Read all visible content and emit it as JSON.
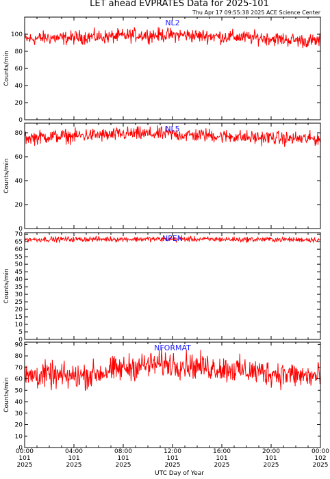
{
  "title": "LET ahead EVPRATES Data for 2025-101",
  "timestamp": "Thu Apr 17 09:55:38 2025 ACE Science Center",
  "colors": {
    "series": "#ff0000",
    "panel_label": "#1a1aff",
    "axes": "#000000"
  },
  "xaxis": {
    "label": "UTC Day of Year",
    "ticks": [
      {
        "time": "00:00",
        "doy": "101",
        "year": "2025",
        "hours": 0
      },
      {
        "time": "04:00",
        "doy": "101",
        "year": "2025",
        "hours": 4
      },
      {
        "time": "08:00",
        "doy": "101",
        "year": "2025",
        "hours": 8
      },
      {
        "time": "12:00",
        "doy": "101",
        "year": "2025",
        "hours": 12
      },
      {
        "time": "16:00",
        "doy": "101",
        "year": "2025",
        "hours": 16
      },
      {
        "time": "20:00",
        "doy": "101",
        "year": "2025",
        "hours": 20
      },
      {
        "time": "00:00",
        "doy": "102",
        "year": "2025",
        "hours": 24
      }
    ]
  },
  "chart_data": [
    {
      "type": "line",
      "series": [
        {
          "name": "NL2"
        }
      ],
      "label": "NL2",
      "ylabel": "Counts/min",
      "ylim": [
        0,
        120
      ],
      "yticks": [
        0,
        20,
        40,
        60,
        80,
        100
      ],
      "xlim_hours": [
        0,
        24
      ],
      "x_hours": [
        0,
        1,
        2,
        3,
        4,
        5,
        6,
        7,
        8,
        9,
        10,
        11,
        12,
        13,
        14,
        15,
        16,
        17,
        18,
        19,
        20,
        21,
        22,
        23,
        24
      ],
      "values": [
        94,
        95,
        96,
        95,
        96,
        97,
        97,
        97,
        98,
        99,
        99,
        99,
        99,
        99,
        98,
        98,
        97,
        97,
        96,
        96,
        95,
        94,
        93,
        92,
        92
      ],
      "noise": 7
    },
    {
      "type": "line",
      "series": [
        {
          "name": "NL5"
        }
      ],
      "label": "NL5",
      "ylabel": "Counts/min",
      "ylim": [
        0,
        88
      ],
      "yticks": [
        0,
        20,
        40,
        60,
        80
      ],
      "xlim_hours": [
        0,
        24
      ],
      "x_hours": [
        0,
        1,
        2,
        3,
        4,
        5,
        6,
        7,
        8,
        9,
        10,
        11,
        12,
        13,
        14,
        15,
        16,
        17,
        18,
        19,
        20,
        21,
        22,
        23,
        24
      ],
      "values": [
        76,
        76,
        77,
        77,
        77,
        78,
        78,
        78,
        79,
        79,
        79,
        79,
        79,
        78,
        78,
        78,
        77,
        77,
        76,
        76,
        76,
        75,
        75,
        75,
        75
      ],
      "noise": 5
    },
    {
      "type": "line",
      "series": [
        {
          "name": "NPEN"
        }
      ],
      "label": "NPEN",
      "ylabel": "Counts/min",
      "ylim": [
        0,
        71
      ],
      "yticks": [
        0,
        5,
        10,
        15,
        20,
        25,
        30,
        35,
        40,
        45,
        50,
        55,
        60,
        65,
        70
      ],
      "xlim_hours": [
        0,
        24
      ],
      "x_hours": [
        0,
        1,
        2,
        3,
        4,
        5,
        6,
        7,
        8,
        9,
        10,
        11,
        12,
        13,
        14,
        15,
        16,
        17,
        18,
        19,
        20,
        21,
        22,
        23,
        24
      ],
      "values": [
        66.5,
        66.5,
        66.5,
        66.6,
        66.6,
        66.6,
        66.7,
        66.7,
        66.7,
        66.7,
        66.7,
        66.7,
        66.7,
        66.7,
        66.6,
        66.6,
        66.6,
        66.5,
        66.5,
        66.5,
        66.5,
        66.4,
        66.4,
        66.4,
        66.4
      ],
      "noise": 1.5
    },
    {
      "type": "line",
      "series": [
        {
          "name": "NFORMAT"
        }
      ],
      "label": "NFORMAT",
      "ylabel": "Counts/min",
      "ylim": [
        0,
        92
      ],
      "yticks": [
        0,
        10,
        20,
        30,
        40,
        50,
        60,
        70,
        80,
        90
      ],
      "xlim_hours": [
        0,
        24
      ],
      "x_hours": [
        0,
        1,
        2,
        3,
        4,
        5,
        6,
        7,
        8,
        9,
        10,
        11,
        12,
        13,
        14,
        15,
        16,
        17,
        18,
        19,
        20,
        21,
        22,
        23,
        24
      ],
      "values": [
        62,
        63,
        63,
        62,
        62,
        63,
        65,
        67,
        69,
        71,
        72,
        73,
        73,
        72,
        71,
        70,
        69,
        68,
        67,
        66,
        65,
        64,
        63,
        62,
        62
      ],
      "noise": 10
    }
  ]
}
